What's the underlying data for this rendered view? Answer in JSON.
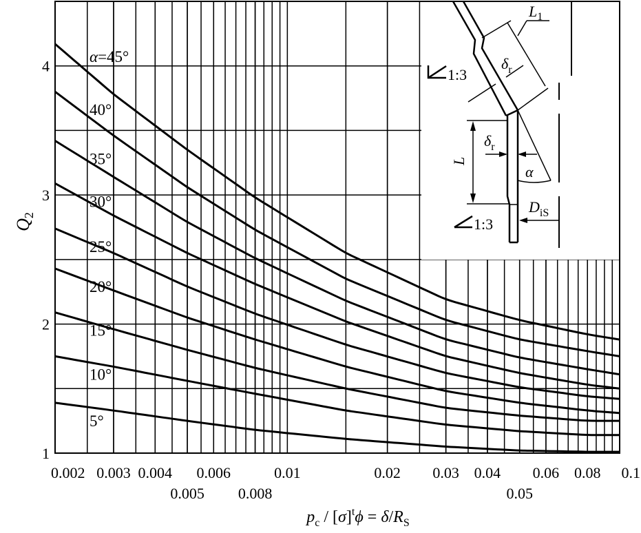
{
  "chart_data": {
    "type": "line",
    "x_scale": "log",
    "xlim": [
      0.002,
      0.1
    ],
    "ylim": [
      1,
      4.5
    ],
    "x_ticks_top_row": [
      "0.002",
      "0.003",
      "0.004",
      "0.006",
      "0.01",
      "0.02",
      "0.03",
      "0.04",
      "0.06",
      "0.08",
      "0.1"
    ],
    "x_ticks_top_values": [
      0.002,
      0.003,
      0.004,
      0.006,
      0.01,
      0.02,
      0.03,
      0.04,
      0.06,
      0.08,
      0.1
    ],
    "x_ticks_bottom_row": [
      "0.005",
      "0.008",
      "0.05"
    ],
    "x_ticks_bottom_values": [
      0.005,
      0.008,
      0.05
    ],
    "y_ticks": [
      "1",
      "2",
      "3",
      "4"
    ],
    "y_tick_values": [
      1,
      2,
      3,
      4
    ],
    "y_grid": [
      1,
      1.5,
      2,
      2.5,
      3,
      3.5,
      4
    ],
    "x_grid": [
      0.0025,
      0.003,
      0.0035,
      0.004,
      0.0045,
      0.005,
      0.0055,
      0.006,
      0.0065,
      0.007,
      0.0075,
      0.008,
      0.0085,
      0.009,
      0.0095,
      0.015,
      0.02,
      0.025,
      0.03,
      0.035,
      0.04,
      0.045,
      0.05,
      0.055,
      0.06,
      0.065,
      0.07,
      0.075,
      0.08,
      0.085,
      0.09,
      0.095
    ],
    "ylabel": "Q",
    "ylabel_sub": "2",
    "xlabel": {
      "pre_p": "p",
      "sub_c": "c",
      "slash": " / [",
      "sigma": "σ",
      "bracket_close": "]",
      "sup_t": "t",
      "phi": "ϕ",
      "eq": " = ",
      "delta": "δ",
      "slash2": "/",
      "R": "R",
      "sub_S": "S"
    },
    "series": [
      {
        "name": "α=45°",
        "x": [
          0.002,
          0.003,
          0.005,
          0.008,
          0.015,
          0.03,
          0.05,
          0.08,
          0.1
        ],
        "y": [
          4.17,
          3.78,
          3.35,
          2.98,
          2.55,
          2.19,
          2.03,
          1.92,
          1.88
        ]
      },
      {
        "name": "40°",
        "x": [
          0.002,
          0.003,
          0.005,
          0.008,
          0.015,
          0.03,
          0.05,
          0.08,
          0.1
        ],
        "y": [
          3.8,
          3.46,
          3.06,
          2.73,
          2.35,
          2.03,
          1.88,
          1.79,
          1.75
        ]
      },
      {
        "name": "35°",
        "x": [
          0.002,
          0.003,
          0.005,
          0.008,
          0.015,
          0.03,
          0.05,
          0.08,
          0.1
        ],
        "y": [
          3.42,
          3.14,
          2.79,
          2.51,
          2.18,
          1.88,
          1.74,
          1.65,
          1.61
        ]
      },
      {
        "name": "30°",
        "x": [
          0.002,
          0.003,
          0.005,
          0.008,
          0.015,
          0.03,
          0.05,
          0.08,
          0.1
        ],
        "y": [
          3.09,
          2.84,
          2.55,
          2.31,
          2.02,
          1.75,
          1.62,
          1.53,
          1.5
        ]
      },
      {
        "name": "25°",
        "x": [
          0.002,
          0.003,
          0.005,
          0.008,
          0.015,
          0.03,
          0.05,
          0.08,
          0.1
        ],
        "y": [
          2.74,
          2.55,
          2.29,
          2.08,
          1.84,
          1.62,
          1.51,
          1.44,
          1.42
        ]
      },
      {
        "name": "20°",
        "x": [
          0.002,
          0.003,
          0.005,
          0.008,
          0.015,
          0.03,
          0.05,
          0.08,
          0.1
        ],
        "y": [
          2.43,
          2.26,
          2.05,
          1.88,
          1.67,
          1.48,
          1.39,
          1.33,
          1.31
        ]
      },
      {
        "name": "15°",
        "x": [
          0.002,
          0.003,
          0.005,
          0.008,
          0.015,
          0.03,
          0.05,
          0.08,
          0.1
        ],
        "y": [
          2.09,
          1.96,
          1.8,
          1.66,
          1.5,
          1.35,
          1.29,
          1.25,
          1.25
        ]
      },
      {
        "name": "10°",
        "x": [
          0.002,
          0.003,
          0.005,
          0.008,
          0.015,
          0.03,
          0.05,
          0.08,
          0.1
        ],
        "y": [
          1.75,
          1.67,
          1.56,
          1.46,
          1.33,
          1.22,
          1.17,
          1.14,
          1.14
        ]
      },
      {
        "name": "5°",
        "x": [
          0.002,
          0.003,
          0.005,
          0.008,
          0.015,
          0.03,
          0.05,
          0.08,
          0.1
        ],
        "y": [
          1.39,
          1.33,
          1.25,
          1.18,
          1.11,
          1.05,
          1.02,
          1.01,
          1.01
        ]
      }
    ],
    "inset": {
      "labels": {
        "L1": "L",
        "L1_sub": "1",
        "delta_r_top": "δ",
        "delta_r_top_sub": "r",
        "slope_top": "1:3",
        "L": "L",
        "delta_r_mid": "δ",
        "delta_r_mid_sub": "r",
        "alpha": "α",
        "D": "D",
        "D_sub": "iS",
        "slope_bottom": "1:3"
      }
    }
  }
}
